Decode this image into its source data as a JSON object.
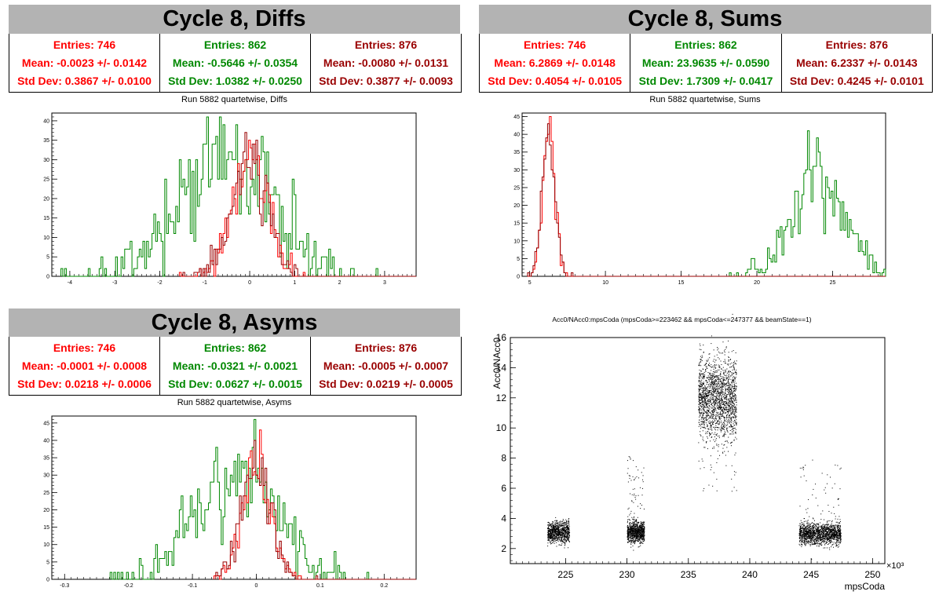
{
  "colors": {
    "red": "#ff0000",
    "green": "#008800",
    "darkred": "#990000",
    "banner": "#b3b3b3"
  },
  "panels": [
    {
      "id": "diffs",
      "title": "Cycle 8, Diffs",
      "run_label": "Run 5882 quartetwise, Diffs",
      "stats": [
        {
          "color": "red",
          "entries": "Entries: 746",
          "mean": "Mean: -0.0023 +/- 0.0142",
          "std": "Std Dev: 0.3867 +/- 0.0100"
        },
        {
          "color": "green",
          "entries": "Entries: 862",
          "mean": "Mean: -0.5646 +/- 0.0354",
          "std": "Std Dev: 1.0382 +/- 0.0250"
        },
        {
          "color": "darkred",
          "entries": "Entries: 876",
          "mean": "Mean: -0.0080 +/- 0.0131",
          "std": "Std Dev: 0.3877 +/- 0.0093"
        }
      ]
    },
    {
      "id": "sums",
      "title": "Cycle 8, Sums",
      "run_label": "Run 5882 quartetwise, Sums",
      "stats": [
        {
          "color": "red",
          "entries": "Entries: 746",
          "mean": "Mean: 6.2869 +/- 0.0148",
          "std": "Std Dev: 0.4054 +/- 0.0105"
        },
        {
          "color": "green",
          "entries": "Entries: 862",
          "mean": "Mean: 23.9635 +/- 0.0590",
          "std": "Std Dev: 1.7309 +/- 0.0417"
        },
        {
          "color": "darkred",
          "entries": "Entries: 876",
          "mean": "Mean: 6.2337 +/- 0.0143",
          "std": "Std Dev: 0.4245 +/- 0.0101"
        }
      ]
    },
    {
      "id": "asyms",
      "title": "Cycle 8, Asyms",
      "run_label": "Run 5882 quartetwise, Asyms",
      "stats": [
        {
          "color": "red",
          "entries": "Entries: 746",
          "mean": "Mean: -0.0001 +/- 0.0008",
          "std": "Std Dev: 0.0218 +/- 0.0006"
        },
        {
          "color": "green",
          "entries": "Entries: 862",
          "mean": "Mean: -0.0321 +/- 0.0021",
          "std": "Std Dev: 0.0627 +/- 0.0015"
        },
        {
          "color": "darkred",
          "entries": "Entries: 876",
          "mean": "Mean: -0.0005 +/- 0.0007",
          "std": "Std Dev: 0.0219 +/- 0.0005"
        }
      ]
    }
  ],
  "chart_data": [
    {
      "type": "histogram",
      "panel": "diffs",
      "xlim": [
        -4.4,
        3.7
      ],
      "ylim": [
        0,
        42
      ],
      "xticks": [
        -4,
        -3,
        -2,
        -1,
        0,
        1,
        2,
        3
      ],
      "yticks": [
        0,
        5,
        10,
        15,
        20,
        25,
        30,
        35,
        40
      ],
      "xlabel": "",
      "ylabel": "",
      "series": [
        {
          "color": "green",
          "entries": 862,
          "mean": -0.5646,
          "std": 1.0382,
          "peak": 41
        },
        {
          "color": "red",
          "entries": 746,
          "mean": -0.0023,
          "std": 0.3867,
          "peak": 35
        },
        {
          "color": "darkred",
          "entries": 876,
          "mean": -0.008,
          "std": 0.3877,
          "peak": 37
        }
      ]
    },
    {
      "type": "histogram",
      "panel": "sums",
      "xlim": [
        4.5,
        28.5
      ],
      "ylim": [
        0,
        46
      ],
      "xticks": [
        5,
        10,
        15,
        20,
        25
      ],
      "yticks": [
        0,
        5,
        10,
        15,
        20,
        25,
        30,
        35,
        40,
        45
      ],
      "xlabel": "",
      "ylabel": "",
      "series": [
        {
          "color": "green",
          "entries": 862,
          "mean": 23.9635,
          "std": 1.7309,
          "peak": 41
        },
        {
          "color": "red",
          "entries": 746,
          "mean": 6.2869,
          "std": 0.4054,
          "peak": 45
        },
        {
          "color": "darkred",
          "entries": 876,
          "mean": 6.2337,
          "std": 0.4245,
          "peak": 43
        }
      ]
    },
    {
      "type": "histogram",
      "panel": "asyms",
      "xlim": [
        -0.32,
        0.25
      ],
      "ylim": [
        0,
        47
      ],
      "xticks": [
        -0.3,
        -0.2,
        -0.1,
        0,
        0.1,
        0.2
      ],
      "yticks": [
        0,
        5,
        10,
        15,
        20,
        25,
        30,
        35,
        40,
        45
      ],
      "xlabel": "",
      "ylabel": "",
      "series": [
        {
          "color": "green",
          "entries": 862,
          "mean": -0.0321,
          "std": 0.0627,
          "peak": 46
        },
        {
          "color": "red",
          "entries": 746,
          "mean": -0.0001,
          "std": 0.0218,
          "peak": 43
        },
        {
          "color": "darkred",
          "entries": 876,
          "mean": -0.0005,
          "std": 0.0219,
          "peak": 40
        }
      ]
    },
    {
      "type": "scatter",
      "panel": "scatter",
      "title": "Acc0/NAcc0:mpsCoda (mpsCoda>=223462 && mpsCoda<=247377 && beamState==1)",
      "xlabel": "mpsCoda",
      "ylabel": "Acc0/NAcc0",
      "x_exponent": "×10³",
      "xlim": [
        220.5,
        251
      ],
      "ylim": [
        1,
        16
      ],
      "xticks": [
        225,
        230,
        235,
        240,
        245,
        250
      ],
      "yticks": [
        2,
        4,
        6,
        8,
        10,
        12,
        14,
        16
      ],
      "clusters": [
        {
          "x": [
            223.5,
            225.3
          ],
          "y_center": 3.1,
          "y_spread": 0.35,
          "count": 900
        },
        {
          "x": [
            230.0,
            231.4
          ],
          "y_center": 3.1,
          "y_spread": 0.35,
          "count": 900,
          "tail_to": 8.2
        },
        {
          "x": [
            235.8,
            238.9
          ],
          "y_center": 12.0,
          "y_spread": 1.3,
          "count": 1800,
          "tail_to": 5.7
        },
        {
          "x": [
            244.0,
            247.4
          ],
          "y_center": 3.0,
          "y_spread": 0.35,
          "count": 1500,
          "tail_to": 8.1
        }
      ]
    }
  ]
}
